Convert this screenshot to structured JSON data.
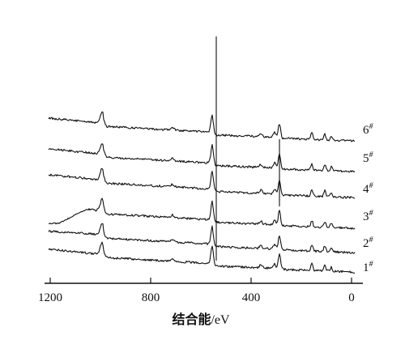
{
  "chart_data": {
    "type": "line",
    "title": "",
    "xlabel": "结合能/eV",
    "ylabel": "",
    "xlim": [
      1200,
      0
    ],
    "x_reversed": true,
    "x_ticks": [
      {
        "value": 1200,
        "label": "1200"
      },
      {
        "value": 800,
        "label": "800"
      },
      {
        "value": 400,
        "label": "400"
      },
      {
        "value": 0,
        "label": "0"
      }
    ],
    "grid": false,
    "legend": "series labels at right end of each curve",
    "series": [
      {
        "name": "1#",
        "base": "1",
        "sup": "#"
      },
      {
        "name": "2#",
        "base": "2",
        "sup": "#"
      },
      {
        "name": "3#",
        "base": "3",
        "sup": "#"
      },
      {
        "name": "4#",
        "base": "4",
        "sup": "#"
      },
      {
        "name": "5#",
        "base": "5",
        "sup": "#"
      },
      {
        "name": "6#",
        "base": "6",
        "sup": "#"
      }
    ]
  }
}
